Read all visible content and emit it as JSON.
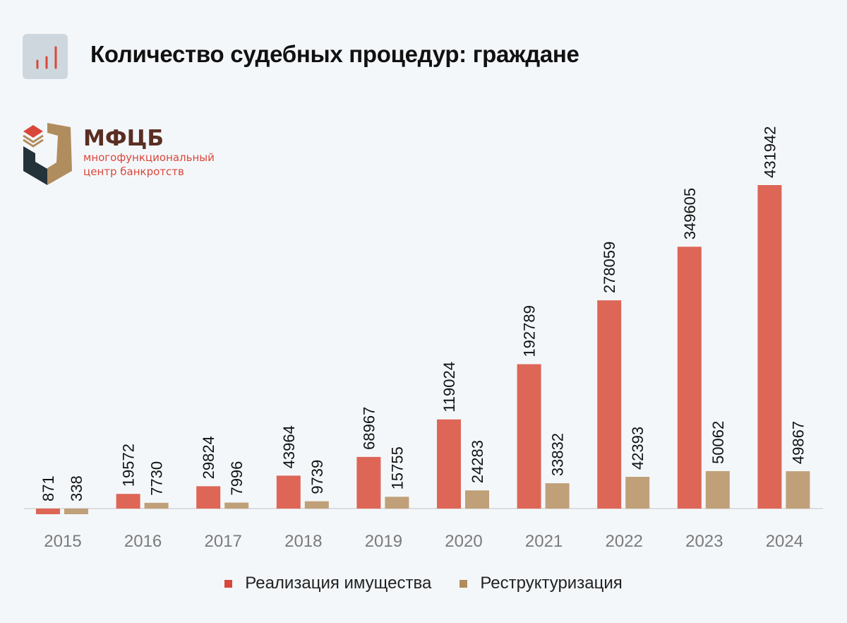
{
  "header": {
    "title": "Количество судебных процедур: граждане",
    "icon": "bar-chart-icon"
  },
  "logo": {
    "name": "МФЦБ",
    "subtitle_line1": "многофункциональный",
    "subtitle_line2": "центр банкротств"
  },
  "colors": {
    "realization": "#dd6657",
    "restructuring": "#c0a079",
    "legend_realization": "#d9473a",
    "legend_restructuring": "#b08d5e",
    "axis": "#dddddd"
  },
  "chart_data": {
    "type": "bar",
    "categories": [
      "2015",
      "2016",
      "2017",
      "2018",
      "2019",
      "2020",
      "2021",
      "2022",
      "2023",
      "2024"
    ],
    "series": [
      {
        "name": "Реализация имущества",
        "values": [
          871,
          19572,
          29824,
          43964,
          68967,
          119024,
          192789,
          278059,
          349605,
          431942
        ]
      },
      {
        "name": "Реструктуризация",
        "values": [
          338,
          7730,
          7996,
          9739,
          15755,
          24283,
          33832,
          42393,
          50062,
          49867
        ]
      }
    ],
    "legend": "bottom",
    "grid": false
  }
}
